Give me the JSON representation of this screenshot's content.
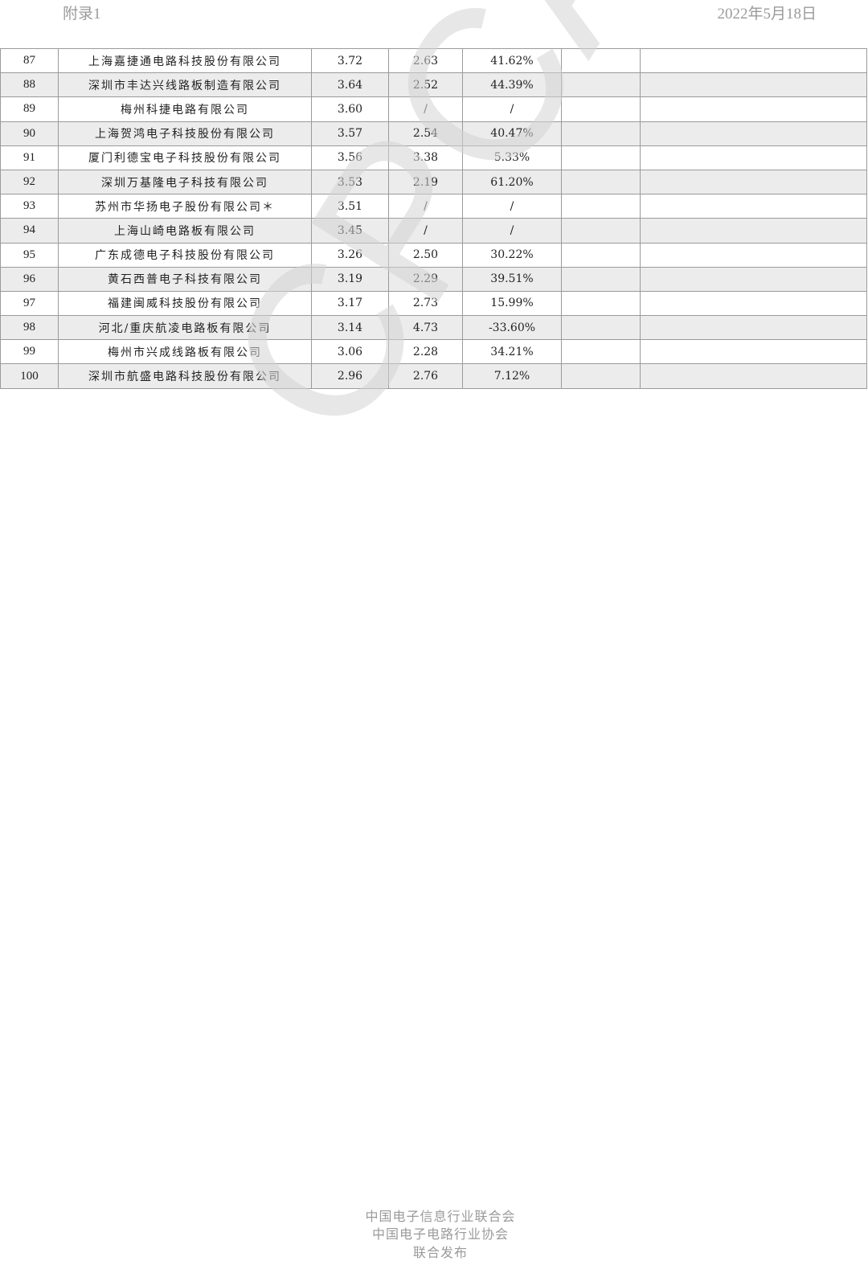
{
  "header": {
    "left": "附录1",
    "right": "2022年5月18日"
  },
  "watermark": "CPCA",
  "table": {
    "rows": [
      [
        "87",
        "上海嘉捷通电路科技股份有限公司",
        "3.72",
        "2.63",
        "41.62%",
        "",
        ""
      ],
      [
        "88",
        "深圳市丰达兴线路板制造有限公司",
        "3.64",
        "2.52",
        "44.39%",
        "",
        ""
      ],
      [
        "89",
        "梅州科捷电路有限公司",
        "3.60",
        "/",
        "/",
        "",
        ""
      ],
      [
        "90",
        "上海贺鸿电子科技股份有限公司",
        "3.57",
        "2.54",
        "40.47%",
        "",
        ""
      ],
      [
        "91",
        "厦门利德宝电子科技股份有限公司",
        "3.56",
        "3.38",
        "5.33%",
        "",
        ""
      ],
      [
        "92",
        "深圳万基隆电子科技有限公司",
        "3.53",
        "2.19",
        "61.20%",
        "",
        ""
      ],
      [
        "93",
        "苏州市华扬电子股份有限公司＊",
        "3.51",
        "/",
        "/",
        "",
        ""
      ],
      [
        "94",
        "上海山崎电路板有限公司",
        "3.45",
        "/",
        "/",
        "",
        ""
      ],
      [
        "95",
        "广东成德电子科技股份有限公司",
        "3.26",
        "2.50",
        "30.22%",
        "",
        ""
      ],
      [
        "96",
        "黄石西普电子科技有限公司",
        "3.19",
        "2.29",
        "39.51%",
        "",
        ""
      ],
      [
        "97",
        "福建闽威科技股份有限公司",
        "3.17",
        "2.73",
        "15.99%",
        "",
        ""
      ],
      [
        "98",
        "河北/重庆航凌电路板有限公司",
        "3.14",
        "4.73",
        "-33.60%",
        "",
        ""
      ],
      [
        "99",
        "梅州市兴成线路板有限公司",
        "3.06",
        "2.28",
        "34.21%",
        "",
        ""
      ],
      [
        "100",
        "深圳市航盛电路科技股份有限公司",
        "2.96",
        "2.76",
        "7.12%",
        "",
        ""
      ]
    ]
  },
  "footer": [
    "中国电子信息行业联合会",
    "中国电子电路行业协会",
    "联合发布"
  ]
}
